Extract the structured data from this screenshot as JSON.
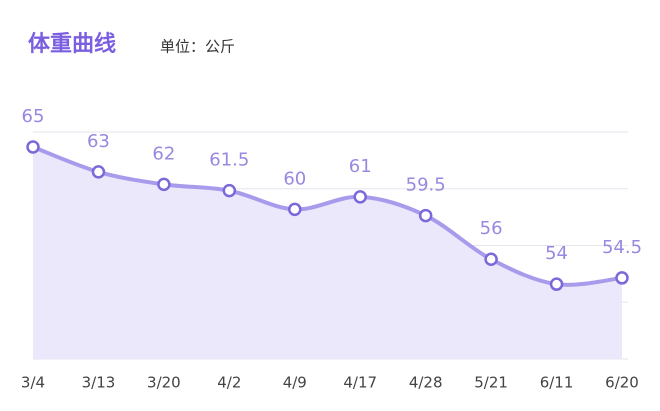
{
  "chart_data": {
    "type": "line",
    "title": "体重曲线",
    "subtitle": "单位：公斤",
    "categories": [
      "3/4",
      "3/13",
      "3/20",
      "4/2",
      "4/9",
      "4/17",
      "4/28",
      "5/21",
      "6/11",
      "6/20"
    ],
    "values": [
      65,
      63,
      62,
      61.5,
      60,
      61,
      59.5,
      56,
      54,
      54.5
    ],
    "color": "#a99bec",
    "ylim": [
      48,
      66.2
    ],
    "grid": true
  }
}
